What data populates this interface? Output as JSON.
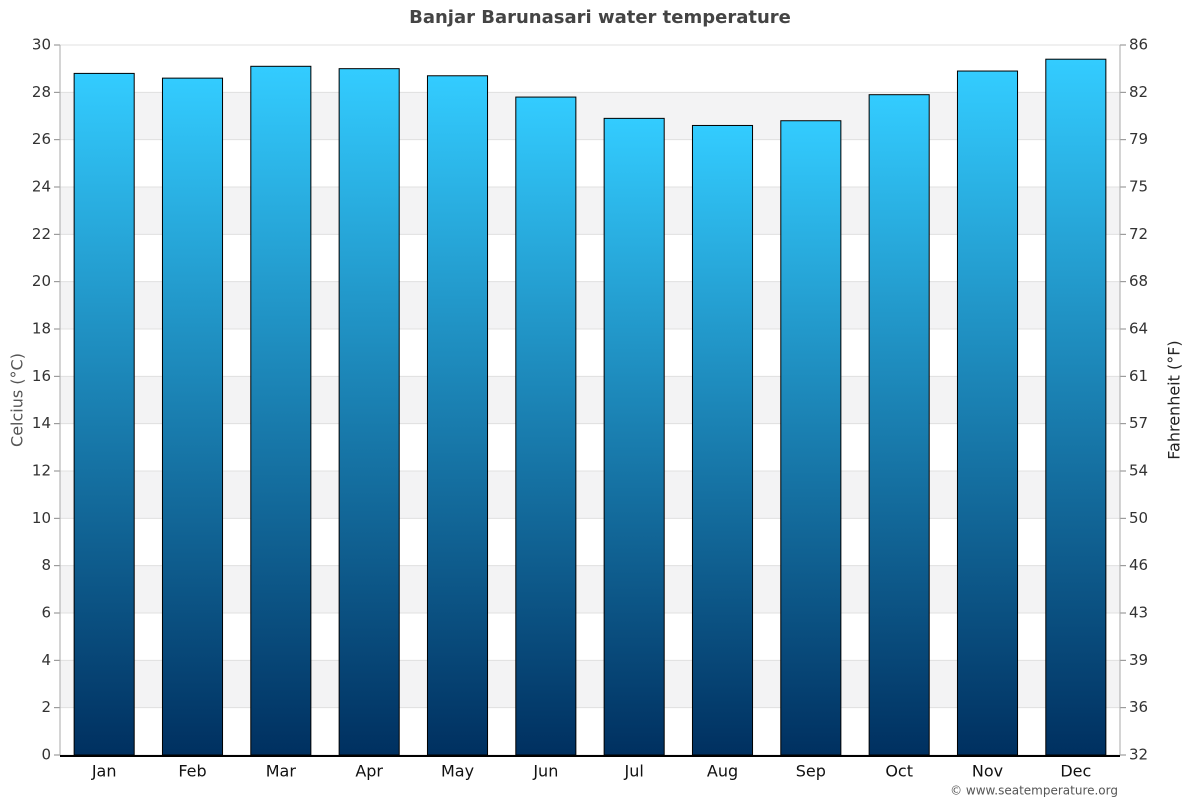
{
  "chart_data": {
    "type": "bar",
    "title": "Banjar Barunasari water temperature",
    "y_label": "Celcius (°C)",
    "y2_label": "Fahrenheit (°F)",
    "credit": "© www.seatemperature.org",
    "categories": [
      "Jan",
      "Feb",
      "Mar",
      "Apr",
      "May",
      "Jun",
      "Jul",
      "Aug",
      "Sep",
      "Oct",
      "Nov",
      "Dec"
    ],
    "values": [
      28.8,
      28.6,
      29.1,
      29.0,
      28.7,
      27.8,
      26.9,
      26.6,
      26.8,
      27.9,
      28.9,
      29.4
    ],
    "color_top": "#33ccff",
    "color_bottom": "#003060",
    "ylim": [
      0,
      30
    ],
    "yticks": [
      0,
      2,
      4,
      6,
      8,
      10,
      12,
      14,
      16,
      18,
      20,
      22,
      24,
      26,
      28,
      30
    ],
    "y2lim": [
      32,
      86
    ],
    "y2ticks": [
      32,
      {
        "value": 35.6,
        "label": "36"
      },
      {
        "value": 39.2,
        "label": "39"
      },
      {
        "value": 42.8,
        "label": "43"
      },
      {
        "value": 46.4,
        "label": "46"
      },
      50,
      {
        "value": 53.6,
        "label": "54"
      },
      {
        "value": 57.2,
        "label": "57"
      },
      {
        "value": 60.8,
        "label": "61"
      },
      {
        "value": 64.4,
        "label": "64"
      },
      68,
      {
        "value": 71.6,
        "label": "72"
      },
      {
        "value": 75.2,
        "label": "75"
      },
      {
        "value": 78.8,
        "label": "79"
      },
      {
        "value": 82.4,
        "label": "82"
      },
      86
    ],
    "grid": true
  }
}
